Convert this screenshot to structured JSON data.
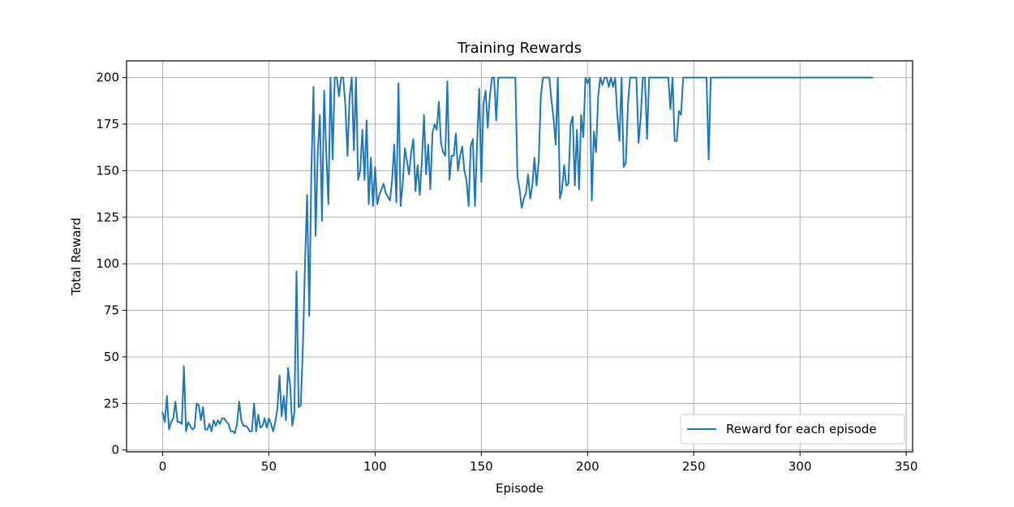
{
  "chart_data": {
    "type": "line",
    "title": "Training Rewards",
    "xlabel": "Episode",
    "ylabel": "Total Reward",
    "xlim": [
      -17,
      353
    ],
    "ylim": [
      -1,
      209
    ],
    "xticks": [
      0,
      50,
      100,
      150,
      200,
      250,
      300,
      350
    ],
    "yticks": [
      0,
      25,
      50,
      75,
      100,
      125,
      150,
      175,
      200
    ],
    "grid": true,
    "legend_position": "lower-right",
    "series_color": "#1f77b4",
    "series": [
      {
        "name": "Reward for each episode",
        "x_start": 0,
        "values": [
          20,
          15,
          29,
          11,
          15,
          17,
          26,
          15,
          15,
          14,
          45,
          10,
          15,
          13,
          11,
          12,
          25,
          24,
          16,
          23,
          11,
          11,
          14,
          10,
          16,
          13,
          16,
          14,
          17,
          17,
          15,
          14,
          10,
          10,
          9,
          14,
          26,
          16,
          13,
          13,
          12,
          10,
          10,
          25,
          10,
          19,
          12,
          13,
          17,
          12,
          17,
          14,
          10,
          15,
          22,
          40,
          18,
          29,
          16,
          44,
          35,
          13,
          20,
          96,
          23,
          24,
          55,
          100,
          137,
          72,
          150,
          195,
          115,
          160,
          180,
          123,
          193,
          160,
          132,
          200,
          156,
          200,
          200,
          190,
          200,
          200,
          185,
          158,
          190,
          200,
          161,
          200,
          145,
          150,
          172,
          145,
          177,
          132,
          157,
          131,
          152,
          132,
          137,
          140,
          143,
          138,
          136,
          134,
          145,
          164,
          133,
          197,
          131,
          143,
          162,
          155,
          148,
          160,
          167,
          139,
          153,
          137,
          155,
          180,
          148,
          164,
          140,
          170,
          175,
          172,
          187,
          165,
          160,
          158,
          198,
          145,
          158,
          158,
          170,
          150,
          158,
          163,
          150,
          145,
          131,
          163,
          167,
          131,
          165,
          194,
          144,
          186,
          193,
          173,
          190,
          200,
          200,
          177,
          200,
          200,
          200,
          200,
          200,
          200,
          200,
          200,
          200,
          147,
          140,
          130,
          135,
          138,
          148,
          135,
          142,
          157,
          142,
          155,
          190,
          200,
          200,
          200,
          200,
          188,
          178,
          164,
          200,
          135,
          140,
          153,
          142,
          143,
          175,
          179,
          142,
          172,
          140,
          180,
          168,
          200,
          197,
          200,
          134,
          171,
          160,
          190,
          200,
          196,
          200,
          200,
          195,
          200,
          195,
          200,
          180,
          166,
          200,
          152,
          154,
          185,
          200,
          200,
          200,
          200,
          165,
          178,
          200,
          200,
          167,
          200,
          200,
          200,
          200,
          200,
          200,
          200,
          200,
          200,
          200,
          183,
          200,
          166,
          166,
          182,
          180,
          200,
          200,
          200,
          200,
          200,
          200,
          200,
          200,
          200,
          200,
          200,
          200,
          156,
          200,
          200,
          200,
          200,
          200,
          200,
          200,
          200,
          200,
          200,
          200,
          200,
          200,
          200,
          200,
          200,
          200,
          200,
          200,
          200,
          200,
          200,
          200,
          200,
          200,
          200,
          200,
          200,
          200,
          200,
          200,
          200,
          200,
          200,
          200,
          200,
          200,
          200,
          200,
          200,
          200,
          200,
          200,
          200,
          200,
          200,
          200,
          200,
          200,
          200,
          200,
          200,
          200,
          200,
          200,
          200,
          200,
          200,
          200,
          200,
          200,
          200,
          200,
          200,
          200,
          200,
          200,
          200,
          200,
          200,
          200,
          200,
          200,
          200,
          200,
          200,
          200
        ]
      }
    ]
  }
}
